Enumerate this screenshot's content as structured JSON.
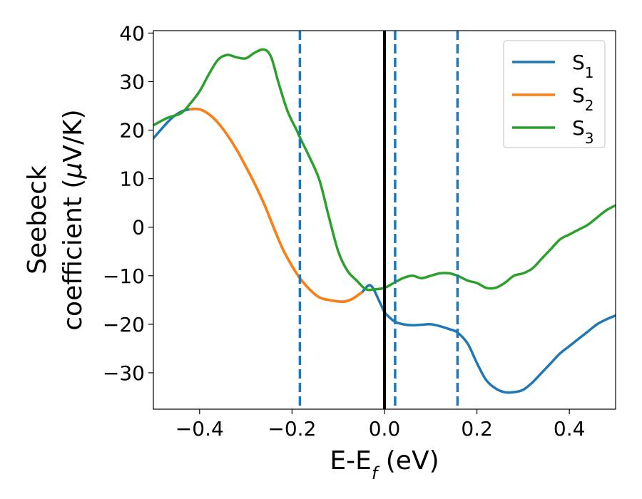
{
  "chart_data": {
    "type": "line",
    "xlabel": "E-E",
    "xlabel_sub": "f",
    "xlabel_tail": " (eV)",
    "ylabel_line1": "Seebeck",
    "ylabel_line2": "coefficient  (",
    "ylabel_mu": "μ",
    "ylabel_tail": "V/K)",
    "xlim": [
      -0.5,
      0.5
    ],
    "ylim": [
      -37.5,
      40.5
    ],
    "xticks": [
      -0.4,
      -0.2,
      0.0,
      0.2,
      0.4
    ],
    "xtick_labels": [
      "−0.4",
      "−0.2",
      "0.0",
      "0.2",
      "0.4"
    ],
    "yticks": [
      -30,
      -20,
      -10,
      0,
      10,
      20,
      30,
      40
    ],
    "ytick_labels": [
      "−30",
      "−20",
      "−10",
      "0",
      "10",
      "20",
      "30",
      "40"
    ],
    "grid": false,
    "legend_position": "top-right",
    "vertical_lines": [
      {
        "x": 0.0,
        "style": "solid",
        "color": "#000000"
      },
      {
        "x": -0.183,
        "style": "dashed",
        "color": "#1f77b4"
      },
      {
        "x": 0.023,
        "style": "dashed",
        "color": "#1f77b4"
      },
      {
        "x": 0.158,
        "style": "dashed",
        "color": "#1f77b4"
      }
    ],
    "series": [
      {
        "name": "S",
        "sub": "1",
        "color": "#1f77b4",
        "x": [
          -0.5,
          -0.48,
          -0.46,
          -0.44,
          -0.42,
          -0.4,
          -0.38,
          -0.36,
          -0.34,
          -0.32,
          -0.3,
          -0.28,
          -0.26,
          -0.24,
          -0.22,
          -0.2,
          -0.183,
          -0.16,
          -0.14,
          -0.12,
          -0.1,
          -0.085,
          -0.07,
          -0.05,
          -0.03,
          -0.01,
          0.0,
          0.01,
          0.023,
          0.04,
          0.06,
          0.08,
          0.1,
          0.12,
          0.14,
          0.158,
          0.18,
          0.2,
          0.22,
          0.24,
          0.26,
          0.28,
          0.3,
          0.32,
          0.34,
          0.36,
          0.38,
          0.4,
          0.42,
          0.44,
          0.46,
          0.48,
          0.5
        ],
        "y": [
          18.3,
          20.5,
          22.5,
          23.8,
          24.3,
          24.3,
          23.3,
          21.5,
          19.0,
          16.0,
          12.5,
          8.8,
          4.7,
          0.0,
          -4.5,
          -8.0,
          -10.5,
          -13.0,
          -14.5,
          -15.0,
          -15.3,
          -15.3,
          -14.8,
          -13.5,
          -12.0,
          -15.5,
          -17.5,
          -18.5,
          -19.5,
          -20.0,
          -20.2,
          -20.1,
          -20.0,
          -20.4,
          -21.0,
          -21.7,
          -24.0,
          -28.0,
          -31.5,
          -33.2,
          -34.0,
          -34.0,
          -33.5,
          -32.0,
          -30.0,
          -28.0,
          -26.0,
          -24.5,
          -23.0,
          -21.5,
          -20.0,
          -19.0,
          -18.2
        ]
      },
      {
        "name": "S",
        "sub": "2",
        "color": "#ff7f0e",
        "x": [
          -0.42,
          -0.4,
          -0.38,
          -0.36,
          -0.34,
          -0.32,
          -0.3,
          -0.28,
          -0.26,
          -0.24,
          -0.22,
          -0.2,
          -0.183,
          -0.16,
          -0.14,
          -0.12,
          -0.1,
          -0.085,
          -0.07,
          -0.05
        ],
        "y": [
          24.3,
          24.3,
          23.3,
          21.5,
          19.0,
          16.0,
          12.5,
          8.8,
          4.7,
          0.0,
          -4.5,
          -8.0,
          -10.5,
          -13.0,
          -14.5,
          -15.0,
          -15.3,
          -15.3,
          -14.8,
          -13.5
        ]
      },
      {
        "name": "S",
        "sub": "3",
        "color": "#2ca02c",
        "x": [
          -0.5,
          -0.47,
          -0.44,
          -0.42,
          -0.4,
          -0.38,
          -0.36,
          -0.34,
          -0.32,
          -0.3,
          -0.28,
          -0.26,
          -0.245,
          -0.23,
          -0.21,
          -0.19,
          -0.183,
          -0.16,
          -0.14,
          -0.12,
          -0.1,
          -0.08,
          -0.06,
          -0.04,
          -0.02,
          0.0,
          0.02,
          0.04,
          0.06,
          0.08,
          0.1,
          0.12,
          0.14,
          0.158,
          0.18,
          0.2,
          0.22,
          0.24,
          0.26,
          0.28,
          0.3,
          0.32,
          0.34,
          0.36,
          0.38,
          0.4,
          0.42,
          0.44,
          0.46,
          0.48,
          0.5
        ],
        "y": [
          21.0,
          22.5,
          23.5,
          25.5,
          28.0,
          31.5,
          34.5,
          35.5,
          35.0,
          34.8,
          36.0,
          36.6,
          35.0,
          30.0,
          24.0,
          20.0,
          18.5,
          14.0,
          9.5,
          2.0,
          -5.0,
          -9.0,
          -11.0,
          -12.8,
          -12.8,
          -12.5,
          -11.5,
          -10.5,
          -10.0,
          -10.5,
          -10.0,
          -9.5,
          -9.5,
          -10.0,
          -11.0,
          -11.5,
          -12.5,
          -12.5,
          -11.5,
          -10.0,
          -9.5,
          -8.5,
          -6.5,
          -4.5,
          -2.5,
          -1.5,
          -0.5,
          0.5,
          2.0,
          3.5,
          4.5
        ]
      }
    ]
  }
}
